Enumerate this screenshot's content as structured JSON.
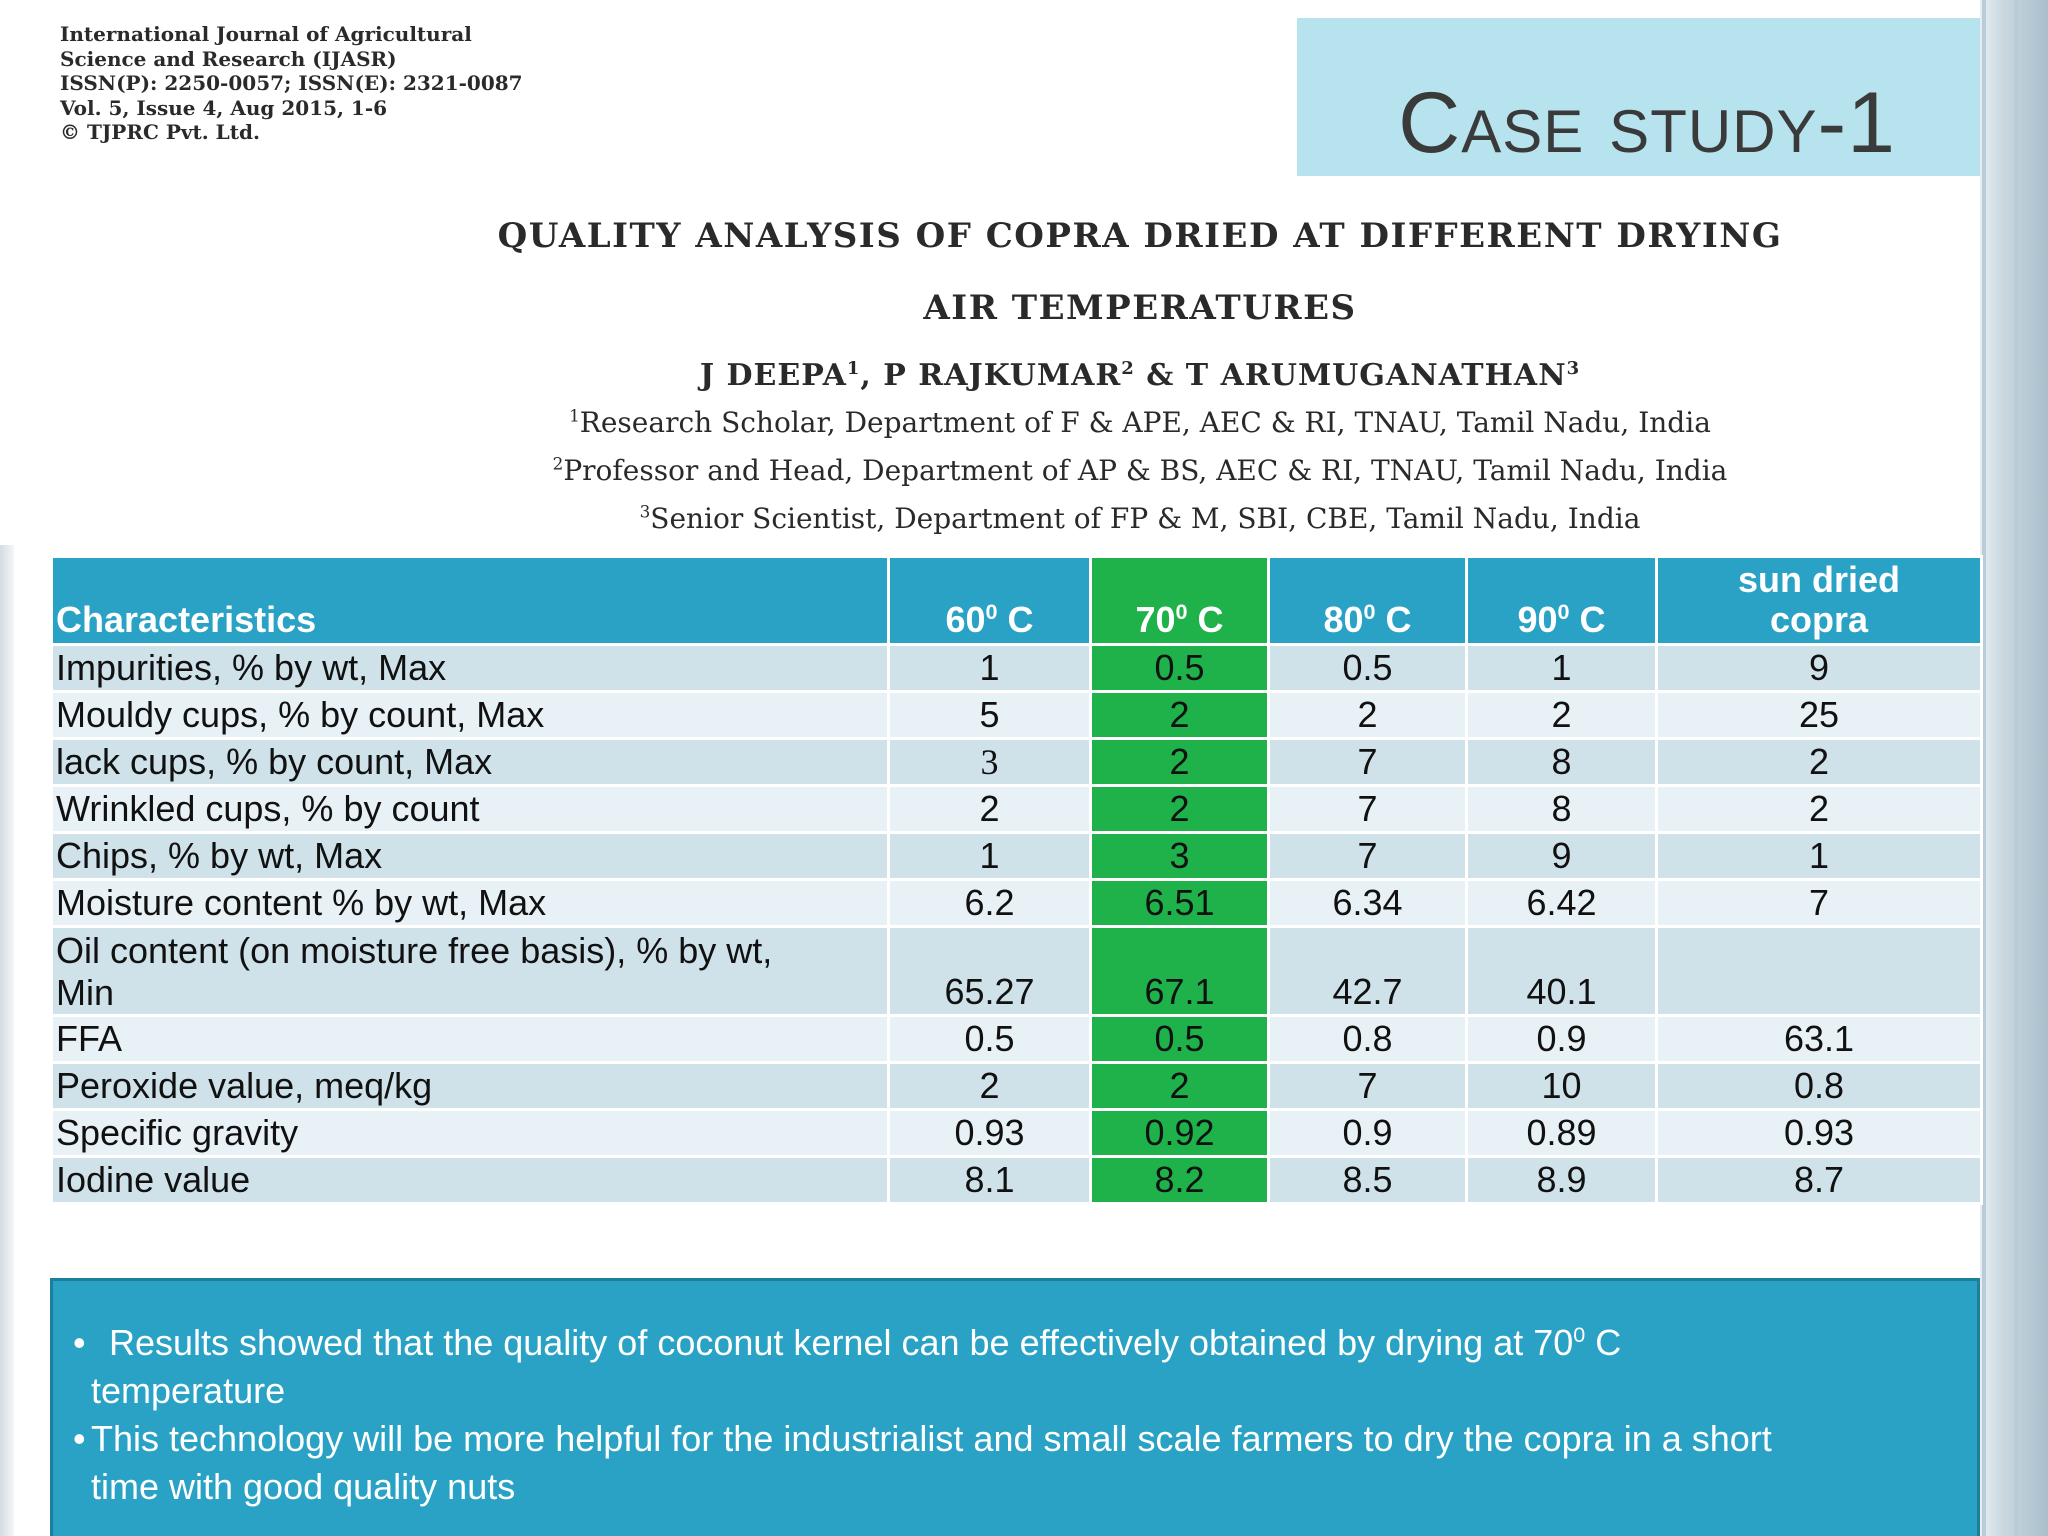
{
  "journal": {
    "line1": "International Journal of Agricultural",
    "line2": "Science and Research (IJASR)",
    "line3": "ISSN(P): 2250-0057; ISSN(E): 2321-0087",
    "line4": "Vol. 5, Issue 4, Aug 2015, 1-6",
    "line5": "© TJPRC Pvt. Ltd."
  },
  "slide": {
    "title": "Case study-1"
  },
  "paper": {
    "title_line1": "QUALITY ANALYSIS OF COPRA DRIED AT DIFFERENT DRYING",
    "title_line2": "AIR TEMPERATURES",
    "authors": {
      "a1": "J DEEPA",
      "s1": "1",
      "a2": ", P RAJKUMAR",
      "s2": "2",
      "a3": " & T ARUMUGANATHAN",
      "s3": "3"
    },
    "affiliations": [
      {
        "sup": "1",
        "text": "Research Scholar, Department of F & APE, AEC & RI, TNAU, Tamil Nadu, India"
      },
      {
        "sup": "2",
        "text": "Professor and Head, Department of AP & BS, AEC & RI, TNAU, Tamil Nadu, India"
      },
      {
        "sup": "3",
        "text": "Senior Scientist, Department of FP & M, SBI, CBE, Tamil Nadu, India"
      }
    ]
  },
  "table": {
    "headers": {
      "characteristics": "Characteristics",
      "t60": "60",
      "t70": "70",
      "t80": "80",
      "t90": "90",
      "deg": "0",
      "unit": " C",
      "sun_line1": "sun dried",
      "sun_line2": "copra"
    },
    "rows": [
      {
        "name": "Impurities, % by wt, Max",
        "values": [
          "1",
          "0.5",
          "0.5",
          "1",
          "9"
        ]
      },
      {
        "name": "Mouldy cups, % by count, Max",
        "values": [
          "5",
          "2",
          "2",
          "2",
          "25"
        ]
      },
      {
        "name": "lack cups, % by count, Max",
        "values": [
          "3",
          "2",
          "7",
          "8",
          "2"
        ]
      },
      {
        "name": "Wrinkled cups, % by count",
        "values": [
          "2",
          "2",
          "7",
          "8",
          "2"
        ]
      },
      {
        "name": "Chips, % by wt, Max",
        "values": [
          "1",
          "3",
          "7",
          "9",
          "1"
        ]
      },
      {
        "name": "Moisture content % by wt, Max",
        "values": [
          "6.2",
          "6.51",
          "6.34",
          "6.42",
          "7"
        ]
      },
      {
        "name_line1": "Oil content (on moisture free basis), % by wt,",
        "name_line2": "Min",
        "values": [
          "65.27",
          "67.1",
          "42.7",
          "40.1",
          ""
        ]
      },
      {
        "name": "FFA",
        "values": [
          "0.5",
          "0.5",
          "0.8",
          "0.9",
          "63.1"
        ]
      },
      {
        "name": "Peroxide value, meq/kg",
        "values": [
          "2",
          "2",
          "7",
          "10",
          "0.8"
        ]
      },
      {
        "name": "Specific gravity",
        "values": [
          "0.93",
          "0.92",
          "0.9",
          "0.89",
          "0.93"
        ]
      },
      {
        "name": "Iodine value",
        "values": [
          "8.1",
          "8.2",
          "8.5",
          "8.9",
          "8.7"
        ]
      }
    ]
  },
  "conclusions": {
    "b1_text": "Results showed that the quality of coconut kernel can be effectively obtained  by drying at 70",
    "b1_sup": "0",
    "b1_unit": " C",
    "b1_cont": "temperature",
    "b2_line1": "This technology will be more helpful for the industrialist and small scale farmers to dry the copra in a short",
    "b2_line2": "time with good quality nuts"
  },
  "colors": {
    "header_blue": "#2aa2c5",
    "highlight_green": "#1fb14a",
    "case_box": "#b7e3ee",
    "row_dark": "#cfe2ea",
    "row_light": "#e8f1f5"
  }
}
